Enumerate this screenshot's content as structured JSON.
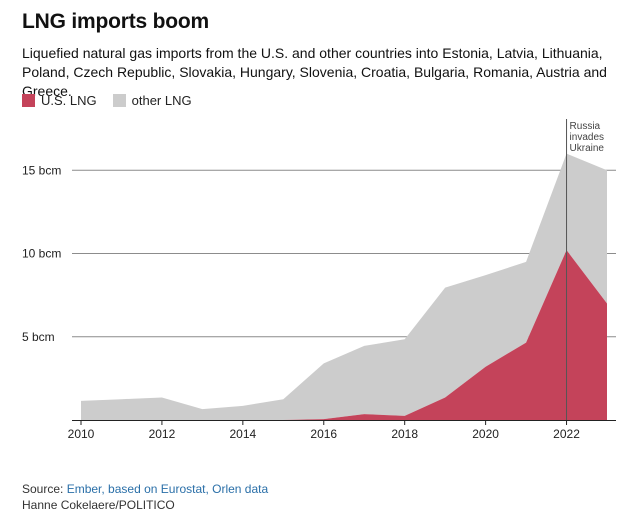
{
  "header": {
    "title": "LNG imports boom",
    "subtitle": "Liquefied natural gas imports from the U.S. and other countries into Estonia, Latvia, Lithuania, Poland, Czech Republic, Slovakia, Hungary, Slovenia, Croatia, Bulgaria, Romania, Austria and Greece."
  },
  "legend": [
    {
      "label": "U.S. LNG",
      "color": "#c4435a"
    },
    {
      "label": "other LNG",
      "color": "#cccccc"
    }
  ],
  "chart_data": {
    "type": "area",
    "stacked": true,
    "title": "LNG imports boom",
    "x": [
      2010,
      2011,
      2012,
      2013,
      2014,
      2015,
      2016,
      2017,
      2018,
      2019,
      2020,
      2021,
      2022,
      2023
    ],
    "series": [
      {
        "name": "U.S. LNG",
        "color": "#c4435a",
        "values": [
          0,
          0,
          0,
          0,
          0,
          0,
          0.05,
          0.35,
          0.25,
          1.35,
          3.2,
          4.65,
          10.2,
          7.0
        ]
      },
      {
        "name": "other LNG",
        "color": "#cccccc",
        "values": [
          1.15,
          1.25,
          1.35,
          0.65,
          0.85,
          1.25,
          3.35,
          4.1,
          4.6,
          6.6,
          5.5,
          4.85,
          5.8,
          8.0
        ]
      }
    ],
    "xticks": [
      2010,
      2012,
      2014,
      2016,
      2018,
      2020,
      2022
    ],
    "xtick_labels": [
      "2010",
      "2012",
      "2014",
      "2016",
      "2018",
      "2020",
      "2022"
    ],
    "yticks": [
      5,
      10,
      15
    ],
    "ytick_labels": [
      "5 bcm",
      "10 bcm",
      "15 bcm"
    ],
    "xlim": [
      2010,
      2023
    ],
    "ylim": [
      0,
      17
    ],
    "grid": "horizontal",
    "annotations": [
      {
        "x": 2022.0,
        "lines": [
          "Russia",
          "invades",
          "Ukraine"
        ]
      }
    ]
  },
  "footer": {
    "source_prefix": "Source: ",
    "source_link": "Ember, based on Eurostat, Orlen data",
    "credit": "Hanne Cokelaere/POLITICO"
  }
}
